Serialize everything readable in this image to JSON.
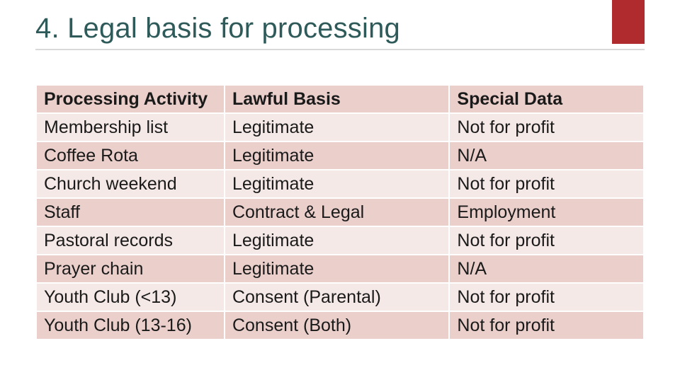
{
  "colors": {
    "accent": "#b02b2e",
    "title": "#2f5a5a",
    "header_bg": "#eacfcb",
    "row_odd": "#f5e9e7",
    "row_even": "#eacfcb"
  },
  "slide": {
    "title": "4. Legal basis for processing"
  },
  "table": {
    "columns": [
      "Processing Activity",
      "Lawful Basis",
      "Special Data"
    ],
    "rows": [
      [
        "Membership list",
        "Legitimate",
        "Not for profit"
      ],
      [
        "Coffee Rota",
        "Legitimate",
        "N/A"
      ],
      [
        "Church weekend",
        "Legitimate",
        "Not for profit"
      ],
      [
        "Staff",
        "Contract & Legal",
        "Employment"
      ],
      [
        "Pastoral records",
        "Legitimate",
        "Not for profit"
      ],
      [
        "Prayer chain",
        "Legitimate",
        "N/A"
      ],
      [
        "Youth Club (<13)",
        "Consent (Parental)",
        "Not for profit"
      ],
      [
        "Youth Club (13-16)",
        "Consent (Both)",
        "Not for profit"
      ]
    ]
  }
}
